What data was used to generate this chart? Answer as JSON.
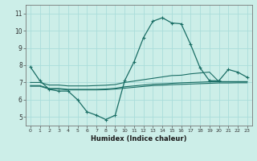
{
  "bg_color": "#cceee8",
  "grid_color": "#aaddda",
  "line_color": "#1a6e65",
  "xlabel": "Humidex (Indice chaleur)",
  "xlim": [
    -0.5,
    23.5
  ],
  "ylim": [
    4.5,
    11.5
  ],
  "xticks": [
    0,
    1,
    2,
    3,
    4,
    5,
    6,
    7,
    8,
    9,
    10,
    11,
    12,
    13,
    14,
    15,
    16,
    17,
    18,
    19,
    20,
    21,
    22,
    23
  ],
  "yticks": [
    5,
    6,
    7,
    8,
    9,
    10,
    11
  ],
  "series": [
    {
      "x": [
        0,
        1,
        2,
        3,
        4,
        5,
        6,
        7,
        8,
        9,
        10,
        11,
        12,
        13,
        14,
        15,
        16,
        17,
        18,
        19,
        20,
        21,
        22,
        23
      ],
      "y": [
        7.9,
        7.1,
        6.6,
        6.5,
        6.5,
        6.0,
        5.3,
        5.1,
        4.85,
        5.1,
        7.1,
        8.2,
        9.6,
        10.55,
        10.75,
        10.45,
        10.4,
        9.2,
        7.85,
        7.1,
        7.1,
        7.75,
        7.6,
        7.3
      ]
    },
    {
      "x": [
        0,
        1,
        2,
        3,
        4,
        5,
        6,
        7,
        8,
        9,
        10,
        11,
        12,
        13,
        14,
        15,
        16,
        17,
        18,
        19,
        20,
        21,
        22,
        23
      ],
      "y": [
        7.0,
        7.0,
        6.85,
        6.85,
        6.8,
        6.8,
        6.8,
        6.82,
        6.84,
        6.88,
        7.0,
        7.08,
        7.16,
        7.24,
        7.32,
        7.4,
        7.42,
        7.5,
        7.55,
        7.6,
        7.05,
        7.05,
        7.05,
        7.05
      ]
    },
    {
      "x": [
        0,
        1,
        2,
        3,
        4,
        5,
        6,
        7,
        8,
        9,
        10,
        11,
        12,
        13,
        14,
        15,
        16,
        17,
        18,
        19,
        20,
        21,
        22,
        23
      ],
      "y": [
        6.82,
        6.82,
        6.65,
        6.65,
        6.6,
        6.6,
        6.6,
        6.6,
        6.62,
        6.66,
        6.75,
        6.8,
        6.85,
        6.9,
        6.92,
        6.95,
        6.98,
        7.0,
        7.02,
        7.04,
        7.04,
        7.04,
        7.04,
        7.04
      ]
    },
    {
      "x": [
        0,
        1,
        2,
        3,
        4,
        5,
        6,
        7,
        8,
        9,
        10,
        11,
        12,
        13,
        14,
        15,
        16,
        17,
        18,
        19,
        20,
        21,
        22,
        23
      ],
      "y": [
        6.78,
        6.78,
        6.62,
        6.62,
        6.57,
        6.57,
        6.57,
        6.57,
        6.58,
        6.62,
        6.67,
        6.72,
        6.77,
        6.82,
        6.84,
        6.87,
        6.89,
        6.91,
        6.93,
        6.95,
        6.97,
        6.97,
        6.98,
        6.98
      ]
    }
  ]
}
